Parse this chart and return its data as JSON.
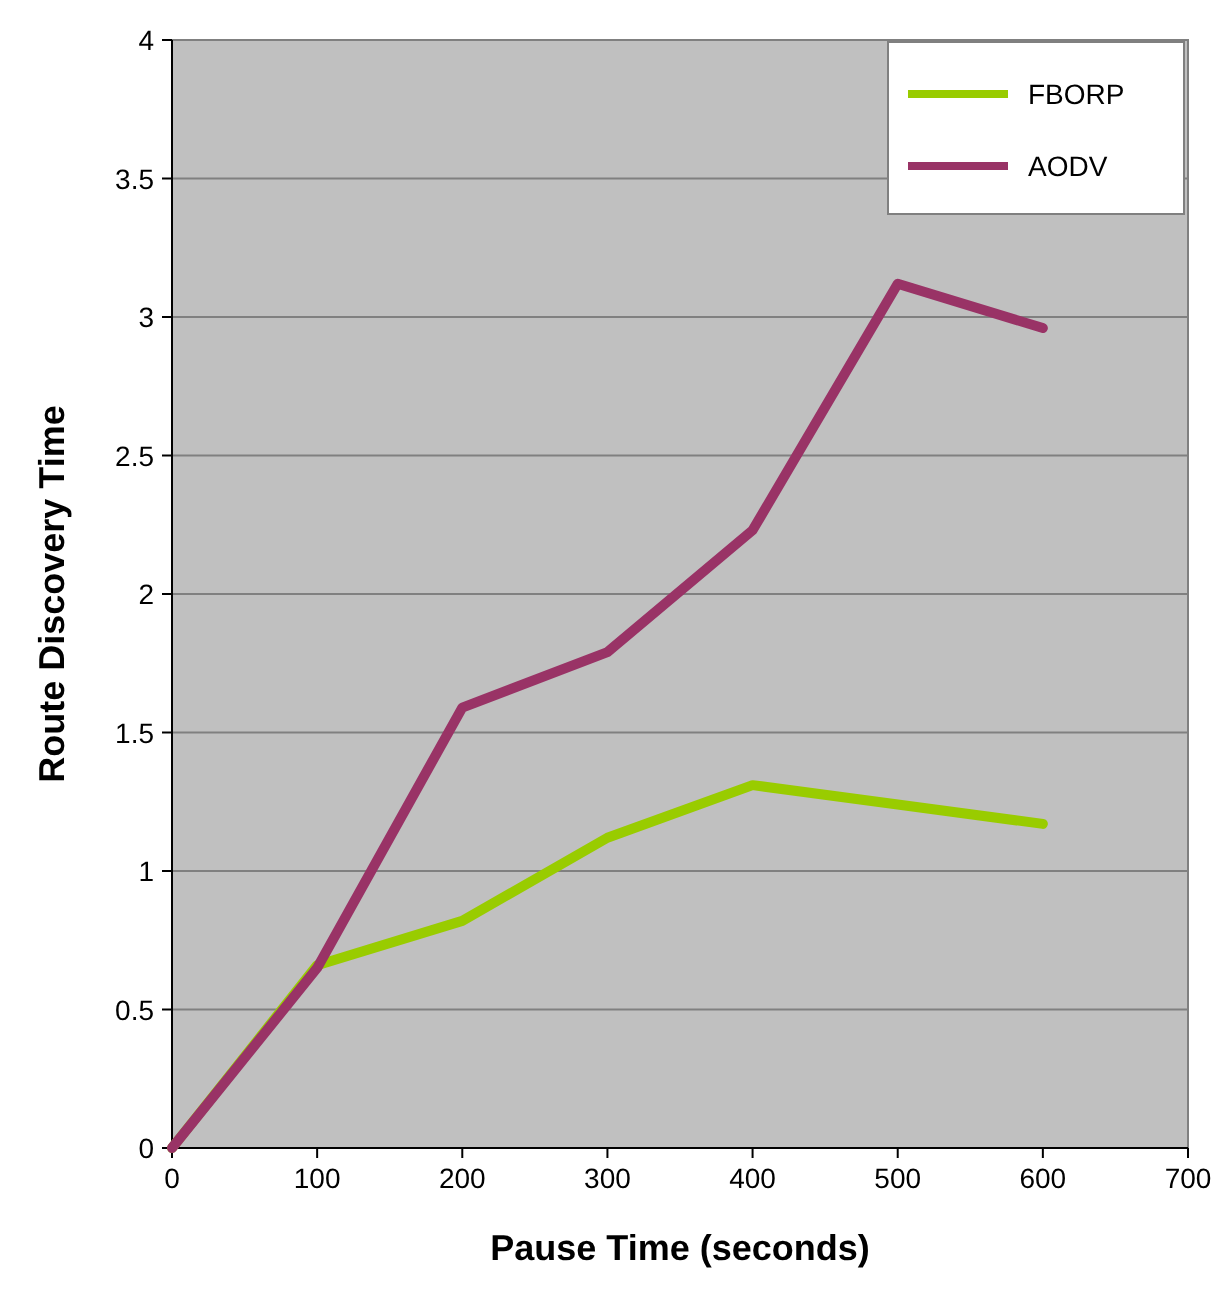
{
  "chart_data": {
    "type": "line",
    "xlabel": "Pause Time (seconds)",
    "ylabel": "Route Discovery Time",
    "x": [
      0,
      100,
      200,
      300,
      400,
      500,
      600
    ],
    "series": [
      {
        "name": "FBORP",
        "color": "#99cc00",
        "values": [
          0,
          0.66,
          0.82,
          1.12,
          1.31,
          1.24,
          1.17
        ]
      },
      {
        "name": "AODV",
        "color": "#993366",
        "values": [
          0,
          0.65,
          1.59,
          1.79,
          2.23,
          3.12,
          2.96
        ]
      }
    ],
    "xlim": [
      0,
      700
    ],
    "xticks": [
      0,
      100,
      200,
      300,
      400,
      500,
      600,
      700
    ],
    "ylim": [
      0,
      4
    ],
    "yticks": [
      0,
      0.5,
      1,
      1.5,
      2,
      2.5,
      3,
      3.5,
      4
    ],
    "grid": "y",
    "legend": "top right",
    "marker": "none"
  }
}
